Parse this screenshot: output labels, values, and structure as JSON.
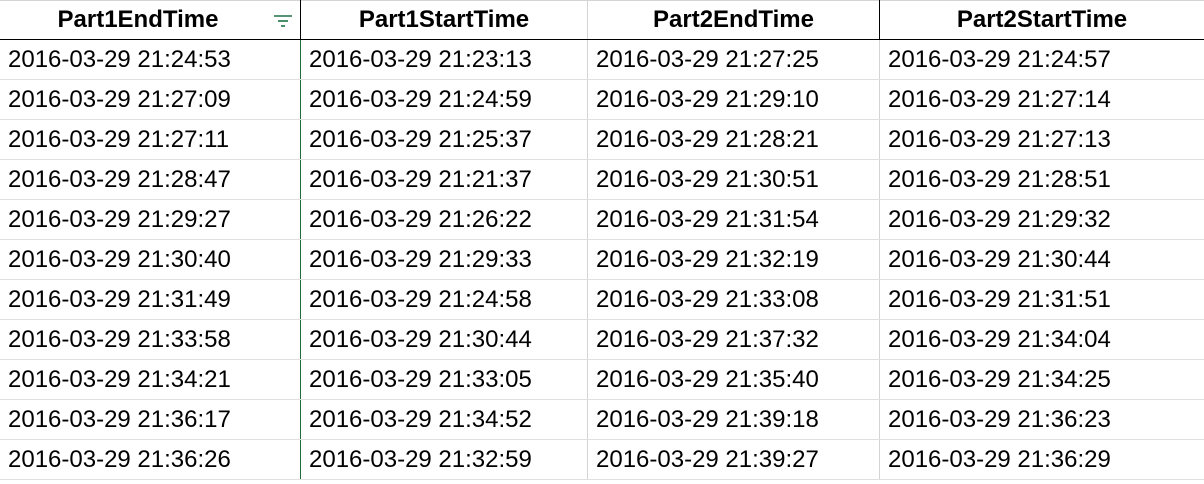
{
  "table": {
    "columns": [
      {
        "label": "Part1EndTime",
        "has_filter": true
      },
      {
        "label": "Part1StartTime",
        "has_filter": false
      },
      {
        "label": "Part2EndTime",
        "has_filter": false
      },
      {
        "label": "Part2StartTime",
        "has_filter": false
      }
    ],
    "filter_icon": "filter-lines-icon",
    "filter_icon_color": "#1e7145",
    "rows": [
      [
        "2016-03-29 21:24:53",
        "2016-03-29 21:23:13",
        "2016-03-29 21:27:25",
        "2016-03-29 21:24:57"
      ],
      [
        "2016-03-29 21:27:09",
        "2016-03-29 21:24:59",
        "2016-03-29 21:29:10",
        "2016-03-29 21:27:14"
      ],
      [
        "2016-03-29 21:27:11",
        "2016-03-29 21:25:37",
        "2016-03-29 21:28:21",
        "2016-03-29 21:27:13"
      ],
      [
        "2016-03-29 21:28:47",
        "2016-03-29 21:21:37",
        "2016-03-29 21:30:51",
        "2016-03-29 21:28:51"
      ],
      [
        "2016-03-29 21:29:27",
        "2016-03-29 21:26:22",
        "2016-03-29 21:31:54",
        "2016-03-29 21:29:32"
      ],
      [
        "2016-03-29 21:30:40",
        "2016-03-29 21:29:33",
        "2016-03-29 21:32:19",
        "2016-03-29 21:30:44"
      ],
      [
        "2016-03-29 21:31:49",
        "2016-03-29 21:24:58",
        "2016-03-29 21:33:08",
        "2016-03-29 21:31:51"
      ],
      [
        "2016-03-29 21:33:58",
        "2016-03-29 21:30:44",
        "2016-03-29 21:37:32",
        "2016-03-29 21:34:04"
      ],
      [
        "2016-03-29 21:34:21",
        "2016-03-29 21:33:05",
        "2016-03-29 21:35:40",
        "2016-03-29 21:34:25"
      ],
      [
        "2016-03-29 21:36:17",
        "2016-03-29 21:34:52",
        "2016-03-29 21:39:18",
        "2016-03-29 21:36:23"
      ],
      [
        "2016-03-29 21:36:26",
        "2016-03-29 21:32:59",
        "2016-03-29 21:39:27",
        "2016-03-29 21:36:29"
      ]
    ]
  }
}
